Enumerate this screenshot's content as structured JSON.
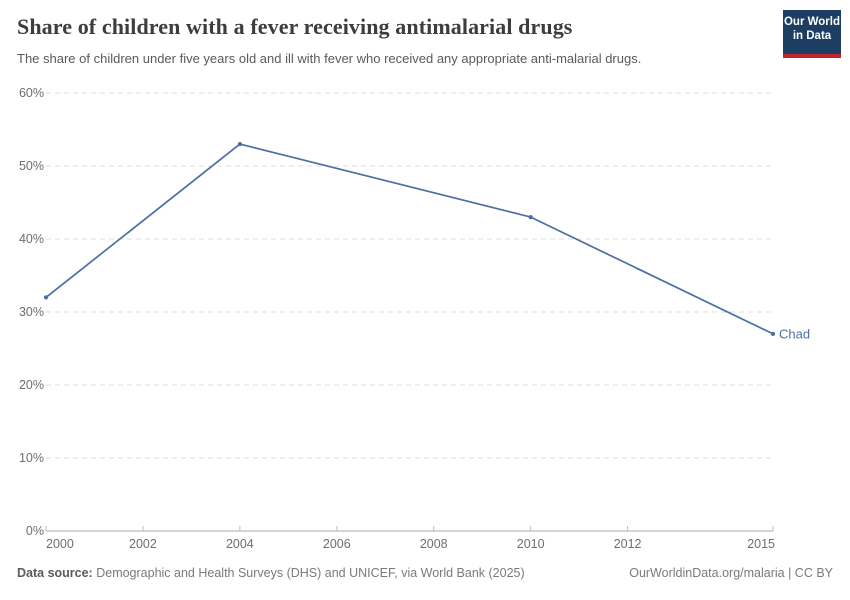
{
  "header": {
    "title": "Share of children with a fever receiving antimalarial drugs",
    "subtitle": "The share of children under five years old and ill with fever who received any appropriate anti-malarial drugs.",
    "logo": {
      "line1": "Our World",
      "line2": "in Data"
    }
  },
  "chart_data": {
    "type": "line",
    "title": "Share of children with a fever receiving antimalarial drugs",
    "series": [
      {
        "name": "Chad",
        "x": [
          2000,
          2004,
          2010,
          2015
        ],
        "values": [
          32,
          53,
          43,
          27
        ]
      }
    ],
    "x_ticks": [
      2000,
      2002,
      2004,
      2006,
      2008,
      2010,
      2012,
      2015
    ],
    "y_ticks": [
      0,
      10,
      20,
      30,
      40,
      50,
      60
    ],
    "y_tick_suffix": "%",
    "xlim": [
      2000,
      2015
    ],
    "ylim": [
      0,
      60
    ],
    "grid": "horizontal-dashed",
    "legend": "end-of-line-label"
  },
  "footer": {
    "source_label": "Data source:",
    "source_text": "Demographic and Health Surveys (DHS) and UNICEF, via World Bank (2025)",
    "right_text": "OurWorldinData.org/malaria | CC BY"
  },
  "colors": {
    "line": "#4c6fa5",
    "grid": "#dedede",
    "axis": "#a9a9a9",
    "tick": "#bdbdbd",
    "tick_label": "#6e6e6e",
    "logo_bg": "#1d3d63",
    "logo_bar": "#c0262b"
  }
}
